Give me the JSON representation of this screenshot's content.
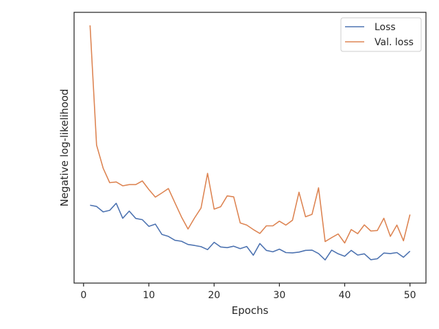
{
  "chart_data": {
    "type": "line",
    "title": "",
    "xlabel": "Epochs",
    "ylabel": "Negative log-likelihood",
    "xlim": [
      -1.45,
      52.45
    ],
    "ylim": [
      0.0,
      1.0
    ],
    "x_ticks": [
      0,
      10,
      20,
      30,
      40,
      50
    ],
    "y_ticks_visible": false,
    "grid": false,
    "legend_position": "top-right",
    "x": [
      1,
      2,
      3,
      4,
      5,
      6,
      7,
      8,
      9,
      10,
      11,
      12,
      13,
      14,
      15,
      16,
      17,
      18,
      19,
      20,
      21,
      22,
      23,
      24,
      25,
      26,
      27,
      28,
      29,
      30,
      31,
      32,
      33,
      34,
      35,
      36,
      37,
      38,
      39,
      40,
      41,
      42,
      43,
      44,
      45,
      46,
      47,
      48,
      49,
      50
    ],
    "series": [
      {
        "name": "Loss",
        "color": "#4c72b0",
        "values": [
          0.267,
          0.262,
          0.24,
          0.246,
          0.275,
          0.214,
          0.243,
          0.213,
          0.208,
          0.181,
          0.19,
          0.148,
          0.14,
          0.124,
          0.12,
          0.107,
          0.103,
          0.098,
          0.086,
          0.116,
          0.097,
          0.094,
          0.1,
          0.09,
          0.099,
          0.063,
          0.111,
          0.083,
          0.077,
          0.088,
          0.074,
          0.073,
          0.076,
          0.083,
          0.084,
          0.07,
          0.044,
          0.084,
          0.069,
          0.059,
          0.083,
          0.064,
          0.069,
          0.045,
          0.049,
          0.072,
          0.07,
          0.074,
          0.055,
          0.08
        ]
      },
      {
        "name": "Val. loss",
        "color": "#dd8452",
        "values": [
          1.0,
          0.512,
          0.418,
          0.359,
          0.362,
          0.346,
          0.351,
          0.351,
          0.366,
          0.331,
          0.3,
          0.317,
          0.335,
          0.277,
          0.219,
          0.17,
          0.215,
          0.256,
          0.397,
          0.251,
          0.261,
          0.305,
          0.301,
          0.195,
          0.186,
          0.168,
          0.152,
          0.183,
          0.183,
          0.202,
          0.186,
          0.206,
          0.32,
          0.22,
          0.23,
          0.338,
          0.119,
          0.135,
          0.15,
          0.113,
          0.168,
          0.151,
          0.187,
          0.162,
          0.164,
          0.214,
          0.14,
          0.186,
          0.122,
          0.229
        ]
      }
    ]
  }
}
